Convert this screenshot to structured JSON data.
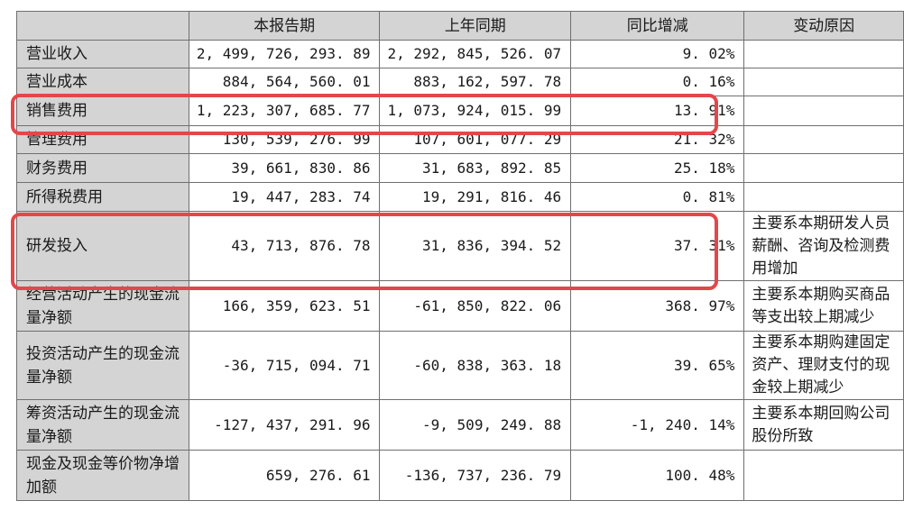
{
  "headers": [
    "",
    "本报告期",
    "上年同期",
    "同比增减",
    "变动原因"
  ],
  "rows": [
    {
      "label": "营业收入",
      "current": "2, 499, 726, 293. 89",
      "previous": "2, 292, 845, 526. 07",
      "change": "9. 02%",
      "reason": ""
    },
    {
      "label": "营业成本",
      "current": "884, 564, 560. 01",
      "previous": "883, 162, 597. 78",
      "change": "0. 16%",
      "reason": ""
    },
    {
      "label": "销售费用",
      "current": "1, 223, 307, 685. 77",
      "previous": "1, 073, 924, 015. 99",
      "change": "13. 91%",
      "reason": ""
    },
    {
      "label": "管理费用",
      "current": "130, 539, 276. 99",
      "previous": "107, 601, 077. 29",
      "change": "21. 32%",
      "reason": ""
    },
    {
      "label": "财务费用",
      "current": "39, 661, 830. 86",
      "previous": "31, 683, 892. 85",
      "change": "25. 18%",
      "reason": ""
    },
    {
      "label": "所得税费用",
      "current": "19, 447, 283. 74",
      "previous": "19, 291, 816. 46",
      "change": "0. 81%",
      "reason": ""
    },
    {
      "label": "研发投入",
      "current": "43, 713, 876. 78",
      "previous": "31, 836, 394. 52",
      "change": "37. 31%",
      "reason": "主要系本期研发人员薪酬、咨询及检测费用增加"
    },
    {
      "label": "经营活动产生的现金流量净额",
      "current": "166, 359, 623. 51",
      "previous": "-61, 850, 822. 06",
      "change": "368. 97%",
      "reason": "主要系本期购买商品等支出较上期减少"
    },
    {
      "label": "投资活动产生的现金流量净额",
      "current": "-36, 715, 094. 71",
      "previous": "-60, 838, 363. 18",
      "change": "39. 65%",
      "reason": "主要系本期购建固定资产、理财支付的现金较上期减少"
    },
    {
      "label": "筹资活动产生的现金流量净额",
      "current": "-127, 437, 291. 96",
      "previous": "-9, 509, 249. 88",
      "change": "-1, 240. 14%",
      "reason": "主要系本期回购公司股份所致"
    },
    {
      "label": "现金及现金等价物净增加额",
      "current": "659, 276. 61",
      "previous": "-136, 737, 236. 79",
      "change": "100. 48%",
      "reason": ""
    }
  ],
  "highlight_color": "#e3474a",
  "highlighted_rows": [
    "销售费用",
    "研发投入"
  ]
}
